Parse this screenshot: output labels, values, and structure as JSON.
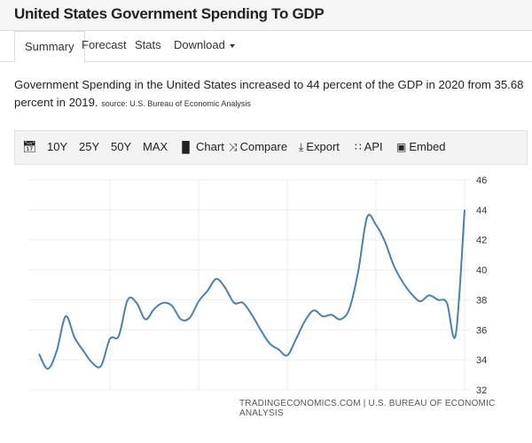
{
  "header": {
    "title": "United States Government Spending To GDP"
  },
  "tabs": [
    {
      "label": "Summary",
      "active": true
    },
    {
      "label": "Forecast"
    },
    {
      "label": "Stats"
    },
    {
      "label": "Download"
    }
  ],
  "description": {
    "text": "Government Spending in the United States increased to 44 percent of the GDP in 2020 from 35.68 percent in 2019.",
    "source": "source: U.S. Bureau of Economic Analysis"
  },
  "toolbar": {
    "calendar_icon": "calendar-icon",
    "items": [
      {
        "label": "10Y"
      },
      {
        "label": "25Y"
      },
      {
        "label": "50Y"
      },
      {
        "label": "MAX"
      },
      {
        "label": "Chart",
        "icon": "bar-chart-icon"
      },
      {
        "label": "Compare",
        "icon": "shuffle-icon"
      },
      {
        "label": "Export",
        "icon": "download-icon"
      },
      {
        "label": "API",
        "icon": "grid-icon"
      },
      {
        "label": "Embed",
        "icon": "image-icon"
      }
    ]
  },
  "footer": {
    "credit": "TRADINGECONOMICS.COM | U.S. BUREAU OF ECONOMIC ANALYSIS"
  },
  "chart_data": {
    "type": "line",
    "title": "",
    "xlabel": "",
    "ylabel": "",
    "line_color": "#4682b4",
    "xlim": [
      1972,
      2020
    ],
    "ylim": [
      32,
      46
    ],
    "xticks": [
      "1980",
      "1990",
      "2000",
      "2010",
      "2020"
    ],
    "yticks": [
      "32",
      "34",
      "36",
      "38",
      "40",
      "42",
      "44",
      "46"
    ],
    "y_axis_side": "right",
    "grid": true,
    "x": [
      1972,
      1973,
      1974,
      1975,
      1976,
      1977,
      1978,
      1979,
      1980,
      1981,
      1982,
      1983,
      1984,
      1985,
      1986,
      1987,
      1988,
      1989,
      1990,
      1991,
      1992,
      1993,
      1994,
      1995,
      1996,
      1997,
      1998,
      1999,
      2000,
      2001,
      2002,
      2003,
      2004,
      2005,
      2006,
      2007,
      2008,
      2009,
      2010,
      2011,
      2012,
      2013,
      2014,
      2015,
      2016,
      2017,
      2018,
      2019,
      2020
    ],
    "y": [
      34.4,
      33.4,
      34.6,
      36.9,
      35.5,
      34.6,
      33.8,
      33.6,
      35.4,
      35.6,
      38.0,
      37.8,
      36.7,
      37.4,
      37.8,
      37.6,
      36.7,
      36.8,
      37.9,
      38.6,
      39.4,
      38.8,
      37.8,
      37.8,
      37.0,
      36.0,
      35.1,
      34.7,
      34.3,
      35.4,
      36.6,
      37.3,
      36.9,
      37.0,
      36.7,
      37.4,
      39.9,
      43.5,
      43.0,
      41.9,
      40.3,
      39.2,
      38.4,
      37.9,
      38.3,
      38.0,
      37.8,
      35.68,
      44.0
    ]
  }
}
